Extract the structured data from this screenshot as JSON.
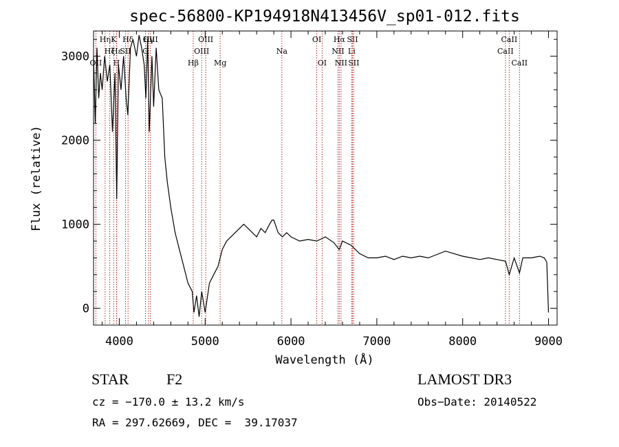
{
  "chart_data": {
    "type": "line",
    "title": "spec-56800-KP194918N413456V_sp01-012.fits",
    "xlabel": "Wavelength (Å)",
    "ylabel": "Flux (relative)",
    "xlim": [
      3700,
      9100
    ],
    "ylim": [
      -200,
      3300
    ],
    "xticks": [
      4000,
      5000,
      6000,
      7000,
      8000,
      9000
    ],
    "yticks": [
      0,
      1000,
      2000,
      3000
    ],
    "spectrum": {
      "x": [
        3700,
        3720,
        3740,
        3760,
        3780,
        3800,
        3830,
        3860,
        3890,
        3920,
        3950,
        3970,
        3990,
        4020,
        4050,
        4080,
        4100,
        4130,
        4160,
        4200,
        4230,
        4260,
        4290,
        4310,
        4330,
        4350,
        4380,
        4400,
        4430,
        4460,
        4500,
        4530,
        4560,
        4600,
        4650,
        4700,
        4750,
        4800,
        4850,
        4870,
        4900,
        4930,
        4960,
        5000,
        5050,
        5100,
        5150,
        5200,
        5250,
        5300,
        5350,
        5400,
        5450,
        5500,
        5550,
        5600,
        5650,
        5700,
        5750,
        5780,
        5800,
        5850,
        5900,
        5950,
        6000,
        6100,
        6200,
        6300,
        6400,
        6500,
        6562,
        6600,
        6700,
        6800,
        6900,
        7000,
        7100,
        7200,
        7300,
        7400,
        7500,
        7600,
        7700,
        7800,
        7900,
        8000,
        8100,
        8200,
        8300,
        8400,
        8500,
        8542,
        8600,
        8662,
        8700,
        8800,
        8900,
        8950,
        8980,
        9000
      ],
      "y": [
        3000,
        2200,
        3100,
        2500,
        2800,
        2600,
        3000,
        2700,
        2900,
        2100,
        2800,
        1300,
        2900,
        2600,
        3000,
        2500,
        2300,
        3100,
        3200,
        3000,
        3250,
        3100,
        2900,
        2500,
        3200,
        2100,
        3000,
        2400,
        3100,
        2600,
        2500,
        1800,
        1500,
        1200,
        900,
        700,
        500,
        300,
        200,
        -50,
        150,
        -100,
        200,
        -50,
        300,
        400,
        500,
        700,
        800,
        850,
        900,
        950,
        1000,
        950,
        900,
        850,
        950,
        900,
        1000,
        1050,
        1050,
        900,
        850,
        900,
        850,
        800,
        820,
        800,
        850,
        780,
        700,
        800,
        750,
        650,
        600,
        600,
        620,
        580,
        620,
        600,
        620,
        600,
        640,
        680,
        650,
        620,
        600,
        580,
        600,
        580,
        560,
        400,
        600,
        420,
        600,
        600,
        620,
        600,
        550,
        -50
      ]
    },
    "line_markers": [
      {
        "label": "OII",
        "wavelength": 3727,
        "row": 3
      },
      {
        "label": "Hη",
        "wavelength": 3835,
        "row": 1
      },
      {
        "label": "Hζ",
        "wavelength": 3889,
        "row": 2
      },
      {
        "label": "K",
        "wavelength": 3934,
        "row": 1
      },
      {
        "label": "H",
        "wavelength": 3968,
        "row": 3
      },
      {
        "label": "Hε",
        "wavelength": 3970,
        "row": 2
      },
      {
        "label": "SII",
        "wavelength": 4072,
        "row": 2
      },
      {
        "label": "Hδ",
        "wavelength": 4102,
        "row": 1
      },
      {
        "label": "G",
        "wavelength": 4305,
        "row": 2
      },
      {
        "label": "Hγ",
        "wavelength": 4341,
        "row": 1
      },
      {
        "label": "OIII",
        "wavelength": 4363,
        "row": 1
      },
      {
        "label": "Hβ",
        "wavelength": 4861,
        "row": 3
      },
      {
        "label": "OIII",
        "wavelength": 4959,
        "row": 2
      },
      {
        "label": "OIII",
        "wavelength": 5007,
        "row": 1
      },
      {
        "label": "Mg",
        "wavelength": 5175,
        "row": 3
      },
      {
        "label": "Na",
        "wavelength": 5894,
        "row": 2
      },
      {
        "label": "OI",
        "wavelength": 6300,
        "row": 1
      },
      {
        "label": "OI",
        "wavelength": 6363,
        "row": 3
      },
      {
        "label": "NII",
        "wavelength": 6548,
        "row": 2
      },
      {
        "label": "Hα",
        "wavelength": 6563,
        "row": 1
      },
      {
        "label": "NII",
        "wavelength": 6583,
        "row": 3
      },
      {
        "label": "Li",
        "wavelength": 6707,
        "row": 2
      },
      {
        "label": "SII",
        "wavelength": 6716,
        "row": 1
      },
      {
        "label": "SII",
        "wavelength": 6731,
        "row": 3
      },
      {
        "label": "CaII",
        "wavelength": 8498,
        "row": 2
      },
      {
        "label": "CaII",
        "wavelength": 8542,
        "row": 1
      },
      {
        "label": "CaII",
        "wavelength": 8662,
        "row": 3
      }
    ],
    "colors": {
      "spectrum": "#000000",
      "markers": "#b22222",
      "frame": "#000000"
    },
    "grid": false
  },
  "info": {
    "object_class": "STAR",
    "subclass": "F2",
    "survey": "LAMOST DR3",
    "cz": "cz = −170.0 ± 13.2 km/s",
    "obs_date": "Obs−Date: 20140522",
    "coords": "RA = 297.62669, DEC =  39.17037"
  }
}
